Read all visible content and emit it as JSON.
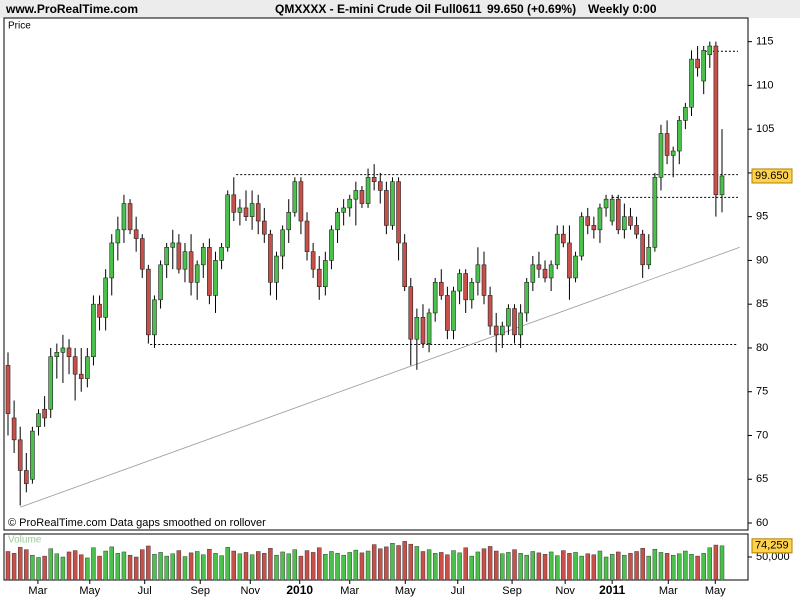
{
  "chart_data": {
    "type": "candlestick",
    "site": "www.ProRealTime.com",
    "title": "QMXXXX - E-mini Crude Oil Full0611",
    "last": "99.650 (+0.69%)",
    "period": "Weekly  0:00",
    "y_label": "Price",
    "volume_label": "Volume",
    "footer": "© ProRealTime.com  Data gaps smoothed on rollover",
    "price_tag": "99.650",
    "volume_tag": "74,259",
    "up_color": "#4cc04c",
    "down_color": "#c8504a",
    "xlim": [
      0,
      117
    ],
    "ylim": [
      59.2,
      117.7
    ],
    "yticks": [
      60,
      65,
      70,
      75,
      80,
      85,
      90,
      95,
      100,
      105,
      110,
      115
    ],
    "xticks": [
      {
        "value": 4.9,
        "label": "Mar"
      },
      {
        "value": 13.4,
        "label": "May"
      },
      {
        "value": 22.4,
        "label": "Jul"
      },
      {
        "value": 31.5,
        "label": "Sep"
      },
      {
        "value": 39.7,
        "label": "Nov"
      },
      {
        "value": 47.8,
        "label": "2010"
      },
      {
        "value": 56.0,
        "label": "Mar"
      },
      {
        "value": 65.1,
        "label": "May"
      },
      {
        "value": 73.7,
        "label": "Jul"
      },
      {
        "value": 82.6,
        "label": "Sep"
      },
      {
        "value": 91.3,
        "label": "Nov"
      },
      {
        "value": 99.0,
        "label": "2011"
      },
      {
        "value": 108.2,
        "label": "Mar"
      },
      {
        "value": 115.9,
        "label": "May"
      }
    ],
    "volume_ylim": [
      0,
      100000
    ],
    "volume_yticks": [
      {
        "value": 50000,
        "label": "50,000"
      }
    ],
    "levels": [
      {
        "value": 99.8,
        "from": 37.4
      },
      {
        "value": 80.4,
        "from": 23.3
      },
      {
        "value": 97.2,
        "from": 99
      },
      {
        "value": 113.9,
        "from": 114.2
      }
    ],
    "trendline": {
      "x": [
        2,
        119.9
      ],
      "y": [
        61.8,
        91.5
      ]
    },
    "ohlc": [
      [
        78,
        79.5,
        70,
        72.5
      ],
      [
        72,
        74,
        68,
        69.5
      ],
      [
        69.5,
        71,
        62,
        66
      ],
      [
        66,
        68,
        63.5,
        64.5
      ],
      [
        65,
        71,
        64.5,
        70.5
      ],
      [
        71,
        73,
        70,
        72.5
      ],
      [
        73,
        74.5,
        71,
        72
      ],
      [
        73,
        80,
        72,
        79
      ],
      [
        79,
        80.5,
        76.5,
        79.5
      ],
      [
        79.5,
        81.5,
        76,
        80
      ],
      [
        80,
        81,
        77,
        79
      ],
      [
        79,
        80,
        74,
        77
      ],
      [
        77,
        80,
        75,
        76.5
      ],
      [
        76.5,
        80,
        75.5,
        79
      ],
      [
        79,
        86,
        78,
        85
      ],
      [
        85,
        86,
        82,
        83.5
      ],
      [
        83.5,
        89,
        82,
        88
      ],
      [
        88,
        93,
        86,
        92
      ],
      [
        92,
        95,
        90,
        93.5
      ],
      [
        93.5,
        97.5,
        92,
        96.5
      ],
      [
        96.5,
        97,
        93,
        93.5
      ],
      [
        93.5,
        95,
        91,
        92.5
      ],
      [
        92.5,
        93,
        88,
        89
      ],
      [
        89,
        89.5,
        80.5,
        81.5
      ],
      [
        81.5,
        86,
        80,
        85.5
      ],
      [
        85.5,
        90,
        84.5,
        89.5
      ],
      [
        89.5,
        92,
        88,
        91.5
      ],
      [
        91.5,
        93.5,
        89,
        92
      ],
      [
        92,
        93,
        88.5,
        89
      ],
      [
        89,
        92,
        87.5,
        91
      ],
      [
        91,
        93,
        86,
        87.5
      ],
      [
        87.5,
        90,
        85.5,
        89.5
      ],
      [
        89.5,
        92,
        88,
        91.5
      ],
      [
        91.5,
        92.5,
        85,
        86
      ],
      [
        86,
        91,
        84,
        90
      ],
      [
        90,
        92,
        89,
        91.5
      ],
      [
        91.5,
        98,
        91,
        97.5
      ],
      [
        97.5,
        99.5,
        94.5,
        95.5
      ],
      [
        95.5,
        97,
        94,
        96
      ],
      [
        96,
        98,
        94.5,
        95
      ],
      [
        95,
        98,
        93.5,
        96.5
      ],
      [
        96.5,
        97.5,
        93,
        94.5
      ],
      [
        94.5,
        96,
        92,
        93
      ],
      [
        93,
        93.5,
        86,
        87.5
      ],
      [
        87.5,
        91,
        85.5,
        90.5
      ],
      [
        90.5,
        94,
        89,
        93.5
      ],
      [
        93.5,
        97,
        92,
        95.5
      ],
      [
        95.5,
        99.5,
        95,
        99
      ],
      [
        99,
        99.5,
        93,
        94.5
      ],
      [
        94.5,
        95.5,
        90,
        91
      ],
      [
        91,
        92,
        88,
        89
      ],
      [
        89,
        90.5,
        85.5,
        87
      ],
      [
        87,
        91,
        86,
        90
      ],
      [
        90,
        94,
        89,
        93.5
      ],
      [
        93.5,
        96,
        92,
        95.5
      ],
      [
        95.5,
        97,
        94,
        96
      ],
      [
        96,
        97.5,
        95,
        97
      ],
      [
        97,
        99,
        94,
        98
      ],
      [
        98,
        98.5,
        96,
        96.5
      ],
      [
        96.5,
        100.5,
        96,
        99.5
      ],
      [
        99.5,
        101,
        98,
        99
      ],
      [
        99,
        100,
        96.5,
        98
      ],
      [
        98,
        99,
        93,
        94
      ],
      [
        94,
        99.5,
        93.5,
        99
      ],
      [
        99,
        99.5,
        90,
        92
      ],
      [
        92,
        93,
        86.5,
        87
      ],
      [
        87,
        88,
        78,
        81
      ],
      [
        81,
        84.5,
        77.5,
        83.5
      ],
      [
        83.5,
        85,
        80,
        80.5
      ],
      [
        80.5,
        84.5,
        79.5,
        84
      ],
      [
        84,
        88,
        83,
        87.5
      ],
      [
        87.5,
        89,
        85.5,
        86
      ],
      [
        86,
        87,
        81,
        82
      ],
      [
        82,
        87,
        81,
        86.5
      ],
      [
        86.5,
        89,
        85,
        88.5
      ],
      [
        88.5,
        89,
        84,
        85.5
      ],
      [
        85.5,
        88,
        84.5,
        87.5
      ],
      [
        87.5,
        91.5,
        86,
        89.5
      ],
      [
        89.5,
        91,
        85,
        86
      ],
      [
        86,
        87,
        81.5,
        82.5
      ],
      [
        82.5,
        84,
        79.5,
        81.5
      ],
      [
        81.5,
        83,
        80,
        82.5
      ],
      [
        82.5,
        85,
        81.5,
        84.5
      ],
      [
        84.5,
        85,
        80.5,
        81.5
      ],
      [
        81.5,
        85,
        80,
        84
      ],
      [
        84,
        88,
        83,
        87.5
      ],
      [
        87.5,
        90.5,
        86.5,
        89.5
      ],
      [
        89.5,
        91,
        88,
        89
      ],
      [
        89,
        90,
        87.5,
        88
      ],
      [
        88,
        90,
        86.5,
        89.5
      ],
      [
        89.5,
        94,
        89,
        93
      ],
      [
        93,
        94,
        91.5,
        92
      ],
      [
        92,
        94,
        85.5,
        88
      ],
      [
        88,
        91,
        87.5,
        90.5
      ],
      [
        90.5,
        95.5,
        90,
        95
      ],
      [
        95,
        96,
        93,
        94
      ],
      [
        94,
        95,
        92.5,
        93.5
      ],
      [
        93.5,
        96.5,
        92,
        96
      ],
      [
        96,
        97.5,
        95,
        97
      ],
      [
        94.5,
        97.5,
        94,
        97
      ],
      [
        97,
        97.5,
        93,
        93.5
      ],
      [
        93.5,
        96.5,
        92.5,
        95
      ],
      [
        95,
        96,
        93.5,
        94
      ],
      [
        94,
        95,
        92.5,
        93
      ],
      [
        93,
        93.5,
        88,
        89.5
      ],
      [
        89.5,
        93,
        89,
        91.5
      ],
      [
        91.5,
        100,
        91,
        99.5
      ],
      [
        99.5,
        105.5,
        98,
        104.5
      ],
      [
        104.5,
        106,
        101,
        102
      ],
      [
        102,
        103,
        99.5,
        102.5
      ],
      [
        102.5,
        106.5,
        101,
        106
      ],
      [
        106,
        108,
        105,
        107.5
      ],
      [
        107.5,
        114,
        106.5,
        113
      ],
      [
        113,
        114.5,
        111,
        112
      ],
      [
        110.5,
        114.5,
        109,
        114
      ],
      [
        113.5,
        115,
        112,
        114.5
      ],
      [
        114.5,
        115,
        95,
        97.5
      ],
      [
        97.5,
        105,
        95.5,
        99.65
      ]
    ],
    "volumes": [
      62000,
      58000,
      71000,
      66000,
      54000,
      49000,
      52000,
      68000,
      57000,
      50000,
      61000,
      64000,
      55000,
      48000,
      70000,
      52000,
      63000,
      72000,
      58000,
      61000,
      54000,
      50000,
      66000,
      74000,
      56000,
      60000,
      52000,
      57000,
      64000,
      51000,
      59000,
      62000,
      55000,
      67000,
      58000,
      53000,
      71000,
      63000,
      57000,
      60000,
      55000,
      62000,
      58000,
      69000,
      54000,
      61000,
      57000,
      66000,
      52000,
      64000,
      60000,
      70000,
      56000,
      62000,
      58000,
      54000,
      60000,
      65000,
      59000,
      63000,
      77000,
      68000,
      72000,
      80000,
      75000,
      84000,
      78000,
      73000,
      62000,
      66000,
      58000,
      60000,
      55000,
      64000,
      59000,
      70000,
      52000,
      61000,
      68000,
      73000,
      63000,
      57000,
      60000,
      66000,
      58000,
      54000,
      62000,
      59000,
      56000,
      61000,
      53000,
      64000,
      58000,
      60000,
      52000,
      57000,
      55000,
      63000,
      50000,
      56000,
      61000,
      54000,
      58000,
      62000,
      69000,
      52000,
      67000,
      60000,
      58000,
      54000,
      57000,
      63000,
      56000,
      52000,
      58000,
      70000,
      76000,
      74259
    ]
  }
}
